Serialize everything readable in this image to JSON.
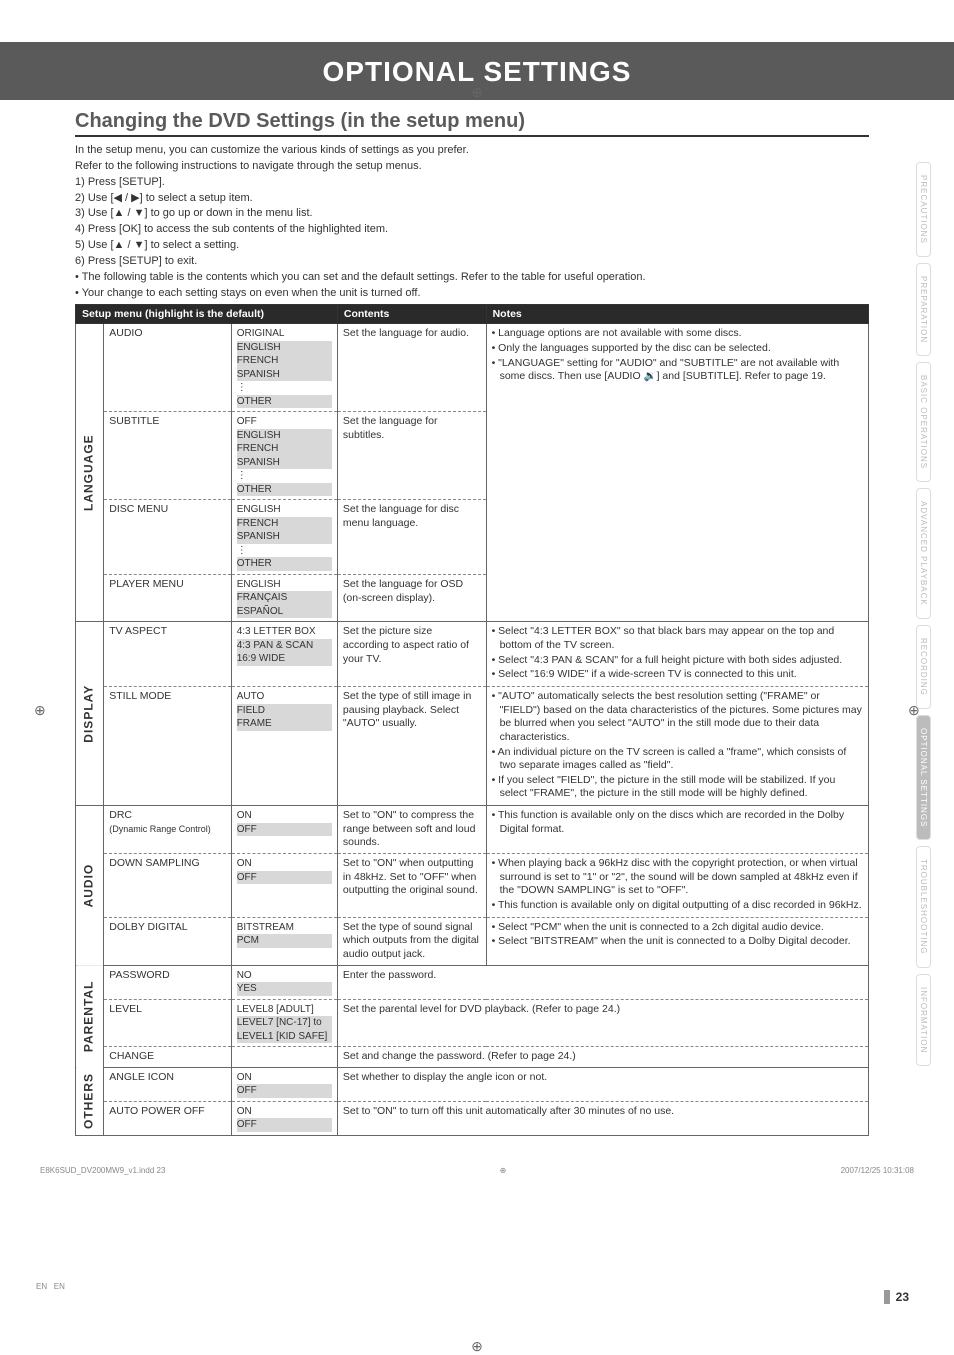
{
  "page": {
    "title": "OPTIONAL SETTINGS",
    "section_heading": "Changing the DVD Settings (in the setup menu)",
    "intro_lines": [
      "In the setup menu, you can customize the various kinds of settings as you prefer.",
      "Refer to the following instructions to navigate through the setup menus.",
      "1)  Press [SETUP].",
      "2)  Use [◀ / ▶] to select a setup item.",
      "3)  Use [▲ / ▼] to go up or down in the menu list.",
      "4)  Press [OK] to access the sub contents of the highlighted item.",
      "5)  Use [▲ / ▼] to select a setting.",
      "6)  Press [SETUP] to exit.",
      "• The following table is the contents which you can set and the default settings. Refer to the table for useful operation.",
      "• Your change to each setting stays on even when the unit is turned off."
    ],
    "page_number": "23",
    "en": "EN",
    "footer_left": "E8K6SUD_DV200MW9_v1.indd   23",
    "footer_right": "2007/12/25   10:31:08"
  },
  "side_tabs": [
    {
      "label": "PRECAUTIONS",
      "active": false
    },
    {
      "label": "PREPARATION",
      "active": false
    },
    {
      "label": "BASIC  OPERATIONS",
      "active": false
    },
    {
      "label": "ADVANCED  PLAYBACK",
      "active": false
    },
    {
      "label": "RECORDING",
      "active": false
    },
    {
      "label": "OPTIONAL  SETTINGS",
      "active": true
    },
    {
      "label": "TROUBLESHOOTING",
      "active": false
    },
    {
      "label": "INFORMATION",
      "active": false
    }
  ],
  "table": {
    "headers": [
      "Setup menu (highlight is the default)",
      "Contents",
      "Notes"
    ],
    "groups": [
      {
        "vlabel": "LANGUAGE",
        "rows": [
          {
            "name": "AUDIO",
            "options": [
              {
                "t": "ORIGINAL",
                "hl": false
              },
              {
                "t": "ENGLISH",
                "hl": true
              },
              {
                "t": "FRENCH",
                "hl": true
              },
              {
                "t": "SPANISH",
                "hl": true
              },
              {
                "t": "⋮",
                "hl": false
              },
              {
                "t": "OTHER",
                "hl": true
              }
            ],
            "contents": "Set the language for audio.",
            "notes": [
              "Language options are not available with some discs.",
              "Only the languages supported by the disc can be selected.",
              "\"LANGUAGE\" setting for \"AUDIO\" and \"SUBTITLE\" are not available with some discs. Then use [AUDIO 🔉] and [SUBTITLE]. Refer to page 19."
            ],
            "rowspan_notes": 4
          },
          {
            "name": "SUBTITLE",
            "options": [
              {
                "t": "OFF",
                "hl": false
              },
              {
                "t": "ENGLISH",
                "hl": true
              },
              {
                "t": "FRENCH",
                "hl": true
              },
              {
                "t": "SPANISH",
                "hl": true
              },
              {
                "t": "⋮",
                "hl": false
              },
              {
                "t": "OTHER",
                "hl": true
              }
            ],
            "contents": "Set the language for subtitles."
          },
          {
            "name": "DISC MENU",
            "options": [
              {
                "t": "ENGLISH",
                "hl": false
              },
              {
                "t": "FRENCH",
                "hl": true
              },
              {
                "t": "SPANISH",
                "hl": true
              },
              {
                "t": "⋮",
                "hl": false
              },
              {
                "t": "OTHER",
                "hl": true
              }
            ],
            "contents": "Set the language for disc menu language."
          },
          {
            "name": "PLAYER MENU",
            "options": [
              {
                "t": "ENGLISH",
                "hl": false
              },
              {
                "t": "FRANÇAIS",
                "hl": true
              },
              {
                "t": "ESPAÑOL",
                "hl": true
              }
            ],
            "contents": "Set the language for OSD (on-screen display)."
          }
        ]
      },
      {
        "vlabel": "DISPLAY",
        "rows": [
          {
            "name": "TV ASPECT",
            "options": [
              {
                "t": "4:3 LETTER BOX",
                "hl": false
              },
              {
                "t": "4:3 PAN & SCAN",
                "hl": true
              },
              {
                "t": "16:9 WIDE",
                "hl": true
              }
            ],
            "contents": "Set the picture size according to aspect ratio of your TV.",
            "notes": [
              "Select \"4:3 LETTER BOX\" so that black bars may appear on the top and bottom of the TV screen.",
              "Select \"4:3 PAN & SCAN\" for a full height picture with both sides adjusted.",
              "Select \"16:9 WIDE\" if a wide-screen TV is connected to this unit."
            ]
          },
          {
            "name": "STILL MODE",
            "options": [
              {
                "t": "AUTO",
                "hl": false
              },
              {
                "t": "FIELD",
                "hl": true
              },
              {
                "t": "FRAME",
                "hl": true
              }
            ],
            "contents": "Set the type of still image in pausing playback. Select \"AUTO\" usually.",
            "notes": [
              "\"AUTO\" automatically selects the best resolution setting (\"FRAME\" or \"FIELD\") based on the data characteristics of the pictures. Some pictures may be blurred when you select \"AUTO\" in the still mode due to their data characteristics.",
              "An individual picture on the TV screen is called a \"frame\", which consists of two separate images called as \"field\".",
              "If you select \"FIELD\", the picture in the still mode will be stabilized. If you select \"FRAME\", the picture in the still mode will be highly defined."
            ]
          }
        ]
      },
      {
        "vlabel": "AUDIO",
        "rows": [
          {
            "name": "DRC",
            "subname": "(Dynamic Range Control)",
            "options": [
              {
                "t": "ON",
                "hl": false
              },
              {
                "t": "OFF",
                "hl": true
              }
            ],
            "contents": "Set to \"ON\" to compress the range between soft and loud sounds.",
            "notes": [
              "This function is available only on the discs which are recorded in the Dolby Digital format."
            ]
          },
          {
            "name": "DOWN SAMPLING",
            "options": [
              {
                "t": "ON",
                "hl": false
              },
              {
                "t": "OFF",
                "hl": true
              }
            ],
            "contents": "Set to \"ON\" when outputting in 48kHz. Set to \"OFF\" when outputting the original sound.",
            "notes": [
              "When playing back a 96kHz disc with the copyright protection, or when virtual surround is set to \"1\" or \"2\", the sound will be down sampled at 48kHz even if the \"DOWN SAMPLING\" is set to \"OFF\".",
              "This function is available only on digital outputting of a disc recorded in 96kHz."
            ]
          },
          {
            "name": "DOLBY DIGITAL",
            "options": [
              {
                "t": "BITSTREAM",
                "hl": false
              },
              {
                "t": "PCM",
                "hl": true
              }
            ],
            "contents": "Set the type of sound signal which outputs from the digital audio output jack.",
            "notes": [
              "Select \"PCM\" when the unit is connected to a 2ch digital audio device.",
              "Select \"BITSTREAM\" when the unit is connected to a Dolby Digital decoder."
            ]
          }
        ]
      },
      {
        "vlabel": "PARENTAL",
        "rows": [
          {
            "name": "PASSWORD",
            "options": [
              {
                "t": "NO",
                "hl": false
              },
              {
                "t": "YES",
                "hl": true
              }
            ],
            "contents_full": "Enter the password."
          },
          {
            "name": "LEVEL",
            "options": [
              {
                "t": "LEVEL8 [ADULT]",
                "hl": false
              },
              {
                "t": "LEVEL7 [NC-17] to",
                "hl": true
              },
              {
                "t": "LEVEL1 [KID SAFE]",
                "hl": true
              }
            ],
            "contents_full": "Set the parental level for DVD playback. (Refer to page 24.)"
          },
          {
            "name": "CHANGE",
            "options": [],
            "contents_full": "Set and change the password. (Refer to page 24.)"
          }
        ]
      },
      {
        "vlabel": "OTHERS",
        "rows": [
          {
            "name": "ANGLE ICON",
            "options": [
              {
                "t": "ON",
                "hl": false
              },
              {
                "t": "OFF",
                "hl": true
              }
            ],
            "contents_full": "Set whether to display the angle icon or not."
          },
          {
            "name": "AUTO POWER OFF",
            "options": [
              {
                "t": "ON",
                "hl": false
              },
              {
                "t": "OFF",
                "hl": true
              }
            ],
            "contents_full": "Set to \"ON\" to turn off this unit automatically after 30 minutes of no use."
          }
        ]
      }
    ]
  }
}
